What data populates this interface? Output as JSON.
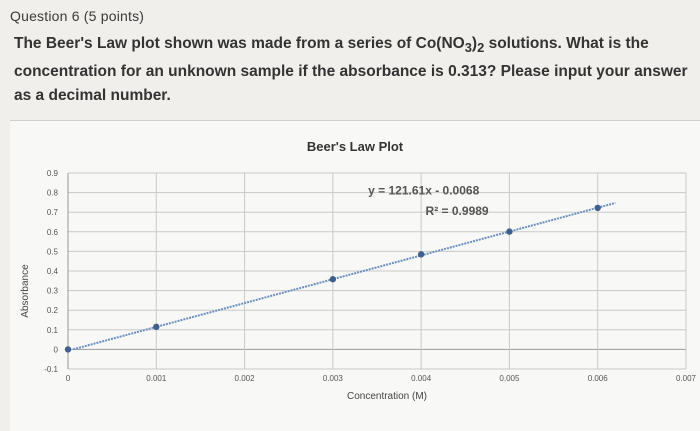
{
  "question": {
    "header": "Question 6 (5 points)",
    "text_before": "The Beer's Law plot shown was made from a series of Co(NO",
    "sub1": "3",
    "text_mid": ")",
    "sub2": "2",
    "text_after": " solutions. What is the concentration for an unknown sample if the absorbance is 0.313? Please input your answer as a decimal number."
  },
  "chart_data": {
    "type": "scatter",
    "title": "Beer's Law Plot",
    "xlabel": "Concentration (M)",
    "ylabel": "Absorbance",
    "xlim": [
      0,
      0.007
    ],
    "ylim": [
      -0.1,
      0.9
    ],
    "x_ticks": [
      "0",
      "0.001",
      "0.002",
      "0.003",
      "0.004",
      "0.005",
      "0.006",
      "0.007"
    ],
    "y_ticks": [
      "-0.1",
      "0",
      "0.1",
      "0.2",
      "0.3",
      "0.4",
      "0.5",
      "0.6",
      "0.7",
      "0.8",
      "0.9"
    ],
    "series": [
      {
        "x": [
          0,
          0.001,
          0.003,
          0.004,
          0.005,
          0.006
        ],
        "y": [
          0,
          0.115,
          0.358,
          0.485,
          0.601,
          0.722
        ]
      }
    ],
    "trendline": {
      "slope": 121.61,
      "intercept": -0.0068
    },
    "annotations": [
      "y = 121.61x - 0.0068",
      "R² = 0.9989"
    ],
    "grid": true,
    "colors": {
      "point": "#3f5f8f",
      "trendline": "#6b8fc0"
    }
  }
}
